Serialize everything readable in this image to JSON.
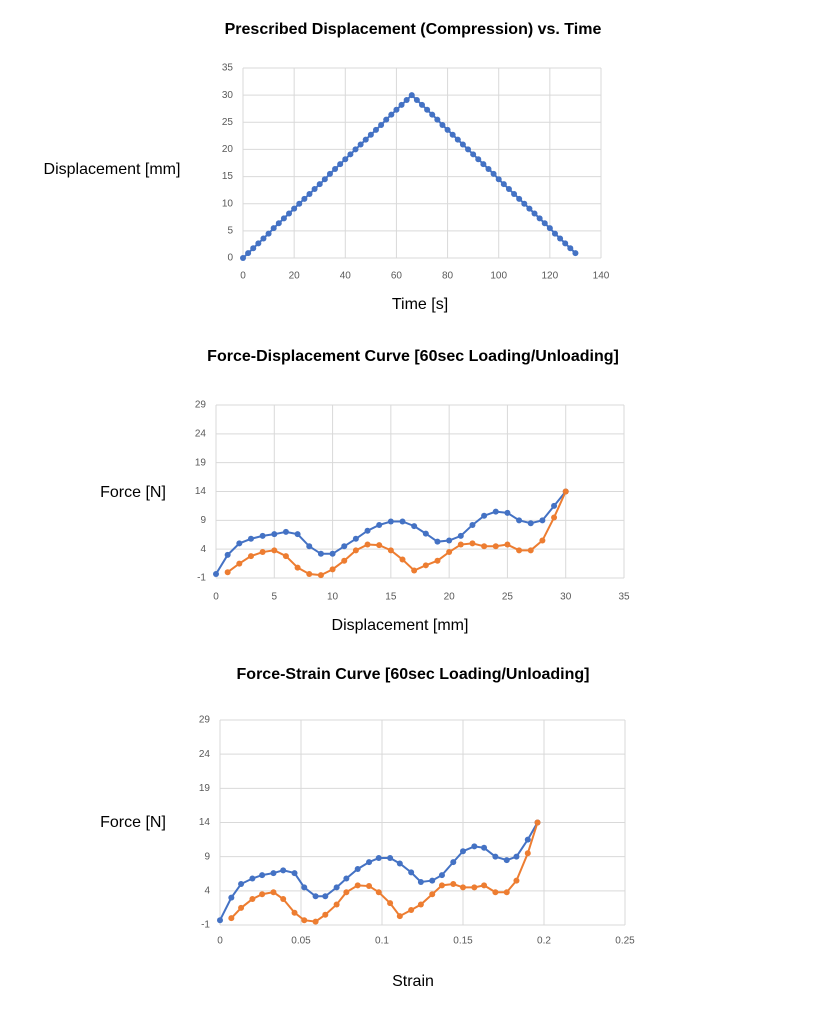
{
  "chart_data": [
    {
      "type": "line",
      "title": "Prescribed Displacement (Compression) vs. Time",
      "x_label": "Time [s]",
      "y_label": "Displacement [mm]",
      "series": [
        {
          "color": "#4472c4",
          "x": [
            0,
            2,
            4,
            6,
            8,
            10,
            12,
            14,
            16,
            18,
            20,
            22,
            24,
            26,
            28,
            30,
            32,
            34,
            36,
            38,
            40,
            42,
            44,
            46,
            48,
            50,
            52,
            54,
            56,
            58,
            60,
            62,
            64,
            66,
            68,
            70,
            72,
            74,
            76,
            78,
            80,
            82,
            84,
            86,
            88,
            90,
            92,
            94,
            96,
            98,
            100,
            102,
            104,
            106,
            108,
            110,
            112,
            114,
            116,
            118,
            120,
            122,
            124,
            126,
            128,
            130
          ],
          "values": [
            0,
            0.9,
            1.8,
            2.7,
            3.6,
            4.5,
            5.5,
            6.4,
            7.3,
            8.2,
            9.1,
            10,
            10.9,
            11.8,
            12.7,
            13.6,
            14.5,
            15.5,
            16.4,
            17.3,
            18.2,
            19.1,
            20,
            20.9,
            21.8,
            22.7,
            23.6,
            24.5,
            25.5,
            26.4,
            27.3,
            28.2,
            29.1,
            30,
            29.1,
            28.2,
            27.3,
            26.4,
            25.5,
            24.5,
            23.6,
            22.7,
            21.8,
            20.9,
            20,
            19.1,
            18.2,
            17.3,
            16.4,
            15.5,
            14.5,
            13.6,
            12.7,
            11.8,
            10.9,
            10,
            9.1,
            8.2,
            7.3,
            6.4,
            5.5,
            4.5,
            3.6,
            2.7,
            1.8,
            0.9
          ]
        }
      ],
      "xlim": [
        0,
        140
      ],
      "xticks": [
        0,
        20,
        40,
        60,
        80,
        100,
        120,
        140
      ],
      "ylim": [
        0,
        35
      ],
      "yticks": [
        0,
        5,
        10,
        15,
        20,
        25,
        30,
        35
      ],
      "grid": true
    },
    {
      "type": "line",
      "title": "Force-Displacement Curve [60sec Loading/Unloading]",
      "x_label": "Displacement [mm]",
      "y_label": "Force [N]",
      "series": [
        {
          "color": "#4472c4",
          "x": [
            0,
            1,
            2,
            3,
            4,
            5,
            6,
            7,
            8,
            9,
            10,
            11,
            12,
            13,
            14,
            15,
            16,
            17,
            18,
            19,
            20,
            21,
            22,
            23,
            24,
            25,
            26,
            27,
            28,
            29,
            30
          ],
          "values": [
            -0.3,
            3,
            5,
            5.8,
            6.3,
            6.6,
            7,
            6.6,
            4.5,
            3.2,
            3.2,
            4.5,
            5.8,
            7.2,
            8.2,
            8.8,
            8.8,
            8,
            6.7,
            5.3,
            5.5,
            6.3,
            8.2,
            9.8,
            10.5,
            10.3,
            9,
            8.5,
            9,
            11.5,
            14
          ]
        },
        {
          "color": "#ed7d31",
          "x": [
            1,
            2,
            3,
            4,
            5,
            6,
            7,
            8,
            9,
            10,
            11,
            12,
            13,
            14,
            15,
            16,
            17,
            18,
            19,
            20,
            21,
            22,
            23,
            24,
            25,
            26,
            27,
            28,
            29,
            30
          ],
          "values": [
            0,
            1.5,
            2.8,
            3.5,
            3.8,
            2.8,
            0.8,
            -0.3,
            -0.5,
            0.5,
            2,
            3.8,
            4.8,
            4.7,
            3.8,
            2.2,
            0.3,
            1.2,
            2,
            3.5,
            4.8,
            5,
            4.5,
            4.5,
            4.8,
            3.8,
            3.8,
            5.5,
            9.5,
            14
          ]
        }
      ],
      "xlim": [
        0,
        35
      ],
      "xticks": [
        0,
        5,
        10,
        15,
        20,
        25,
        30,
        35
      ],
      "ylim": [
        -1,
        29
      ],
      "yticks": [
        -1,
        4,
        9,
        14,
        19,
        24,
        29
      ],
      "grid": true
    },
    {
      "type": "line",
      "title": "Force-Strain Curve [60sec Loading/Unloading]",
      "x_label": "Strain",
      "y_label": "Force [N]",
      "series": [
        {
          "color": "#4472c4",
          "x": [
            0,
            0.007,
            0.013,
            0.02,
            0.026,
            0.033,
            0.039,
            0.046,
            0.052,
            0.059,
            0.065,
            0.072,
            0.078,
            0.085,
            0.092,
            0.098,
            0.105,
            0.111,
            0.118,
            0.124,
            0.131,
            0.137,
            0.144,
            0.15,
            0.157,
            0.163,
            0.17,
            0.177,
            0.183,
            0.19,
            0.196
          ],
          "values": [
            -0.3,
            3,
            5,
            5.8,
            6.3,
            6.6,
            7,
            6.6,
            4.5,
            3.2,
            3.2,
            4.5,
            5.8,
            7.2,
            8.2,
            8.8,
            8.8,
            8,
            6.7,
            5.3,
            5.5,
            6.3,
            8.2,
            9.8,
            10.5,
            10.3,
            9,
            8.5,
            9,
            11.5,
            14
          ]
        },
        {
          "color": "#ed7d31",
          "x": [
            0.007,
            0.013,
            0.02,
            0.026,
            0.033,
            0.039,
            0.046,
            0.052,
            0.059,
            0.065,
            0.072,
            0.078,
            0.085,
            0.092,
            0.098,
            0.105,
            0.111,
            0.118,
            0.124,
            0.131,
            0.137,
            0.144,
            0.15,
            0.157,
            0.163,
            0.17,
            0.177,
            0.183,
            0.19,
            0.196
          ],
          "values": [
            0,
            1.5,
            2.8,
            3.5,
            3.8,
            2.8,
            0.8,
            -0.3,
            -0.5,
            0.5,
            2,
            3.8,
            4.8,
            4.7,
            3.8,
            2.2,
            0.3,
            1.2,
            2,
            3.5,
            4.8,
            5,
            4.5,
            4.5,
            4.8,
            3.8,
            3.8,
            5.5,
            9.5,
            14
          ]
        }
      ],
      "xlim": [
        0,
        0.25
      ],
      "xticks": [
        0,
        0.05,
        0.1,
        0.15,
        0.2,
        0.25
      ],
      "ylim": [
        -1,
        29
      ],
      "yticks": [
        -1,
        4,
        9,
        14,
        19,
        24,
        29
      ],
      "grid": true
    }
  ]
}
